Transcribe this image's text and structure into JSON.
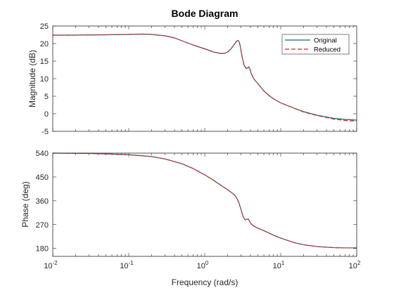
{
  "chart_data": {
    "type": "line",
    "title": "Bode Diagram",
    "xlabel": "Frequency (rad/s)",
    "x_scale": "log",
    "xlim": [
      0.01,
      100
    ],
    "x_ticks": [
      0.01,
      0.1,
      1,
      10,
      100
    ],
    "x_tick_labels": [
      {
        "base": "10",
        "exp": "-2"
      },
      {
        "base": "10",
        "exp": "-1"
      },
      {
        "base": "10",
        "exp": "0"
      },
      {
        "base": "10",
        "exp": "1"
      },
      {
        "base": "10",
        "exp": "2"
      }
    ],
    "legend": {
      "position": "top-right",
      "entries": [
        "Original",
        "Reduced"
      ]
    },
    "colors": {
      "Original": "#0b6e6e",
      "Reduced": "#d62728",
      "axis": "#262626",
      "minor": "#b0b0b0"
    },
    "panels": [
      {
        "name": "magnitude",
        "ylabel": "Magnitude (dB)",
        "ylim": [
          -5,
          25
        ],
        "y_ticks": [
          -5,
          0,
          5,
          10,
          15,
          20,
          25
        ],
        "y_tick_labels": [
          "-5",
          "0",
          "5",
          "10",
          "15",
          "20",
          "25"
        ],
        "series": [
          {
            "name": "Original",
            "x": [
              0.01,
              0.02,
              0.05,
              0.1,
              0.15,
              0.2,
              0.3,
              0.4,
              0.5,
              0.7,
              1.0,
              1.3,
              1.6,
              1.8,
              2.0,
              2.2,
              2.4,
              2.6,
              2.75,
              2.85,
              2.95,
              3.1,
              3.3,
              3.5,
              3.65,
              3.8,
              3.95,
              4.1,
              4.4,
              5,
              6,
              7,
              8,
              10,
              15,
              20,
              30,
              50,
              70,
              100
            ],
            "y": [
              22.4,
              22.4,
              22.5,
              22.6,
              22.7,
              22.6,
              22.2,
              21.6,
              20.8,
              19.6,
              18.5,
              17.6,
              17.2,
              17.2,
              17.6,
              18.4,
              19.5,
              20.6,
              20.9,
              20.4,
              19.0,
              16.2,
              13.8,
              12.9,
              13.0,
              13.4,
              12.6,
              11.4,
              10.0,
              8.6,
              6.5,
              5.2,
              4.3,
              3.1,
              1.6,
              0.6,
              -0.4,
              -1.3,
              -1.6,
              -1.8
            ]
          },
          {
            "name": "Reduced",
            "x": [
              0.01,
              0.02,
              0.05,
              0.1,
              0.15,
              0.2,
              0.3,
              0.4,
              0.5,
              0.7,
              1.0,
              1.3,
              1.6,
              1.8,
              2.0,
              2.2,
              2.4,
              2.6,
              2.75,
              2.85,
              2.95,
              3.1,
              3.3,
              3.5,
              3.65,
              3.8,
              3.95,
              4.1,
              4.4,
              5,
              6,
              7,
              8,
              10,
              15,
              20,
              30,
              50,
              70,
              100
            ],
            "y": [
              22.4,
              22.4,
              22.5,
              22.6,
              22.7,
              22.6,
              22.2,
              21.6,
              20.8,
              19.6,
              18.5,
              17.6,
              17.2,
              17.2,
              17.6,
              18.4,
              19.5,
              20.6,
              20.9,
              20.4,
              19.0,
              16.2,
              13.8,
              12.9,
              13.0,
              13.4,
              12.6,
              11.4,
              10.0,
              8.6,
              6.5,
              5.2,
              4.3,
              3.1,
              1.6,
              0.5,
              -0.5,
              -1.5,
              -1.9,
              -2.1
            ]
          }
        ]
      },
      {
        "name": "phase",
        "ylabel": "Phase (deg)",
        "ylim": [
          150,
          540
        ],
        "y_ticks": [
          180,
          270,
          360,
          450,
          540
        ],
        "y_tick_labels": [
          "180",
          "270",
          "360",
          "450",
          "540"
        ],
        "series": [
          {
            "name": "Original",
            "x": [
              0.01,
              0.03,
              0.1,
              0.2,
              0.3,
              0.5,
              0.7,
              1.0,
              1.3,
              1.6,
              2.0,
              2.4,
              2.6,
              2.8,
              3.0,
              3.2,
              3.4,
              3.6,
              3.75,
              3.9,
              4.1,
              4.5,
              5,
              6,
              7,
              8,
              10,
              15,
              20,
              30,
              50,
              70,
              100
            ],
            "y": [
              540,
              539,
              534,
              527,
              518,
              500,
              482,
              458,
              438,
              420,
              402,
              385,
              373,
              355,
              327,
              300,
              288,
              290,
              291,
              282,
              272,
              263,
              257,
              247,
              238,
              230,
              219,
              202,
              194,
              187,
              183,
              182,
              182
            ]
          },
          {
            "name": "Reduced",
            "x": [
              0.01,
              0.03,
              0.1,
              0.2,
              0.3,
              0.5,
              0.7,
              1.0,
              1.3,
              1.6,
              2.0,
              2.4,
              2.6,
              2.8,
              3.0,
              3.2,
              3.4,
              3.6,
              3.75,
              3.9,
              4.1,
              4.5,
              5,
              6,
              7,
              8,
              10,
              15,
              20,
              30,
              50,
              70,
              100
            ],
            "y": [
              540,
              539,
              534,
              527,
              518,
              500,
              482,
              458,
              438,
              420,
              402,
              385,
              373,
              355,
              327,
              300,
              288,
              290,
              291,
              282,
              272,
              263,
              257,
              247,
              238,
              230,
              219,
              202,
              194,
              187,
              183,
              182,
              182
            ]
          }
        ]
      }
    ]
  }
}
